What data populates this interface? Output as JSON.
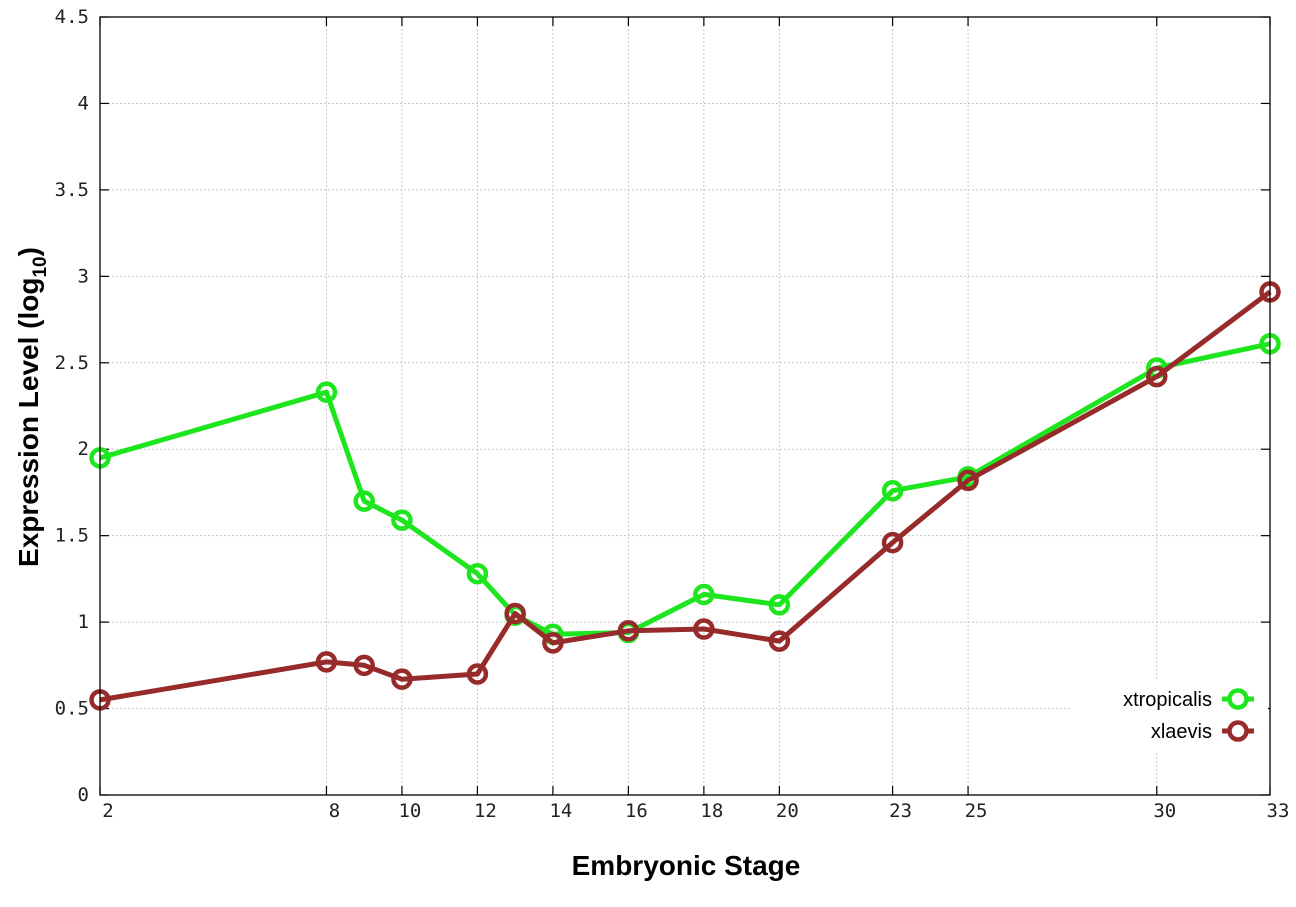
{
  "chart_data": {
    "type": "line",
    "xlabel": "Embryonic Stage",
    "ylabel": {
      "main": "Expression Level (log",
      "sub": "10",
      "close": ")"
    },
    "x_ticks": [
      2,
      8,
      10,
      12,
      14,
      16,
      18,
      20,
      23,
      25,
      30,
      33
    ],
    "y_ticks": [
      "0",
      "0.5",
      "1",
      "1.5",
      "2",
      "2.5",
      "3",
      "3.5",
      "4",
      "4.5"
    ],
    "xlim": [
      2,
      33
    ],
    "ylim": [
      0,
      4.5
    ],
    "grid": true,
    "legend_position": "bottom-right",
    "series": [
      {
        "name": "xtropicalis",
        "color": "#1ee61e",
        "x": [
          2,
          8,
          9,
          10,
          12,
          13,
          14,
          16,
          18,
          20,
          23,
          25,
          30,
          33
        ],
        "values": [
          1.95,
          2.33,
          1.7,
          1.59,
          1.28,
          1.04,
          0.93,
          0.94,
          1.16,
          1.1,
          1.76,
          1.84,
          2.47,
          2.61
        ]
      },
      {
        "name": "xlaevis",
        "color": "#972a2a",
        "x": [
          2,
          8,
          9,
          10,
          12,
          13,
          14,
          16,
          18,
          20,
          23,
          25,
          30,
          33
        ],
        "values": [
          0.55,
          0.77,
          0.75,
          0.67,
          0.7,
          1.05,
          0.88,
          0.95,
          0.96,
          0.89,
          1.46,
          1.82,
          2.42,
          2.91
        ]
      }
    ]
  }
}
